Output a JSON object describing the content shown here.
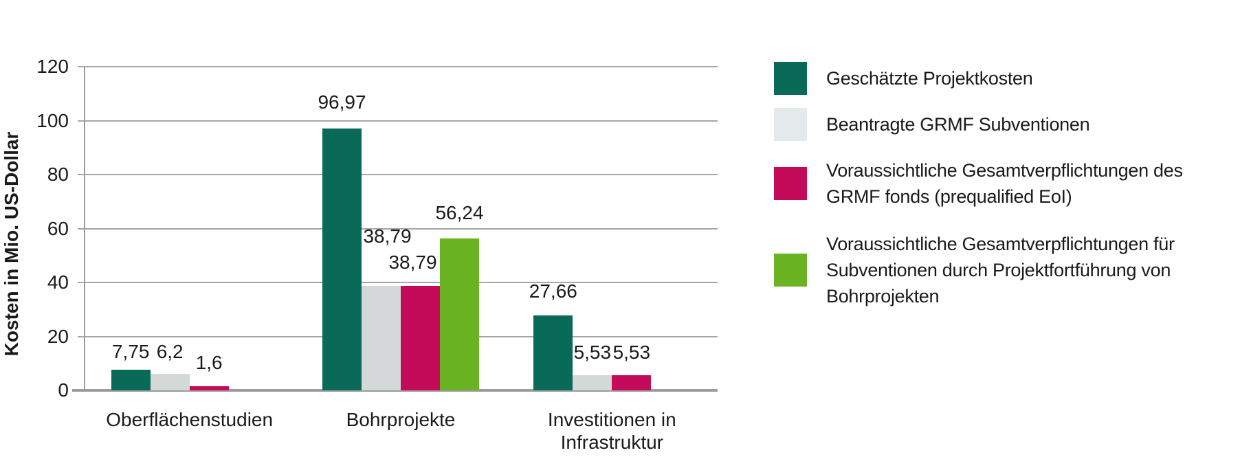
{
  "chart_data": {
    "type": "bar",
    "title": "",
    "ylabel": "Kosten in Mio. US-Dollar",
    "xlabel": "",
    "ylim": [
      0,
      120
    ],
    "ytick_step": 20,
    "ytick_labels": [
      "0",
      "20",
      "40",
      "60",
      "80",
      "100",
      "120"
    ],
    "grid": true,
    "legend_position": "right",
    "categories": [
      {
        "lines": [
          "Oberflächenstudien"
        ]
      },
      {
        "lines": [
          "Bohrprojekte"
        ]
      },
      {
        "lines": [
          "Investitionen in",
          "Infrastruktur"
        ]
      }
    ],
    "series": [
      {
        "name": "Geschätzte Projektkosten",
        "legend_lines": [
          "Geschätzte Projektkosten"
        ],
        "color": "#086a57",
        "values": [
          7.75,
          96.97,
          27.66
        ],
        "value_labels": [
          "7,75",
          "96,97",
          "27,66"
        ]
      },
      {
        "name": "Beantragte GRMF Subventionen",
        "legend_lines": [
          "Beantragte GRMF Subventionen"
        ],
        "color": "#d4d8d8",
        "legend_color": "#e4e9eb",
        "values": [
          6.2,
          38.79,
          5.53
        ],
        "value_labels": [
          "6,2",
          "38,79",
          "5,53"
        ]
      },
      {
        "name": "Voraussichtliche Gesamtverpflichtungen des GRMF fonds (prequalified EoI)",
        "legend_lines": [
          "Voraussichtliche Gesamtverpflichtungen des",
          "GRMF fonds (prequalified EoI)"
        ],
        "color": "#c30b59",
        "values": [
          1.6,
          38.79,
          5.53
        ],
        "value_labels": [
          "1,6",
          "38,79",
          "5,53"
        ]
      },
      {
        "name": "Voraussichtliche Gesamtverpflichtungen für Subventionen durch Projektfortführung von Bohrprojekten",
        "legend_lines": [
          "Voraussichtliche Gesamtverpflichtungen für",
          "Subventionen durch Projektfortführung von",
          "Bohrprojekten"
        ],
        "color": "#6ab323",
        "values": [
          null,
          56.24,
          null
        ],
        "value_labels": [
          null,
          "56,24",
          null
        ]
      }
    ],
    "value_label_offsets": {
      "0_0": [
        0,
        1
      ],
      "1_0": [
        0,
        7
      ],
      "2_0": [
        0,
        9
      ],
      "0_1": [
        0,
        13
      ],
      "1_1": [
        9,
        47
      ],
      "2_1": [
        -11,
        9
      ],
      "3_1": [
        0,
        12
      ],
      "0_2": [
        0,
        10
      ],
      "1_2": [
        0,
        8
      ],
      "2_2": [
        0,
        8
      ]
    },
    "colors": {
      "axis": "#9c9c9c",
      "grid": "#a6a6a6",
      "text": "#1a1a1a",
      "background": "#ffffff"
    }
  }
}
